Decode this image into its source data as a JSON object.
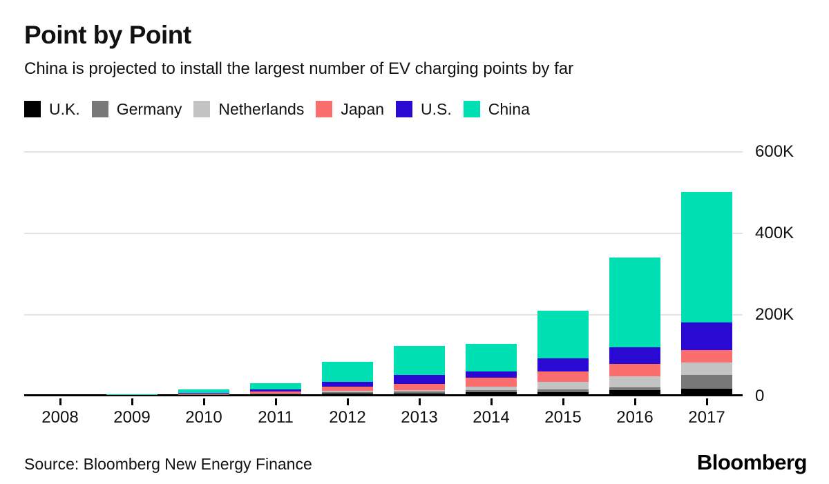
{
  "header": {
    "title": "Point by Point",
    "subtitle": "China is projected to install the largest number of EV charging points by far"
  },
  "legend": [
    {
      "label": "U.K.",
      "color": "#000000"
    },
    {
      "label": "Germany",
      "color": "#787878"
    },
    {
      "label": "Netherlands",
      "color": "#c3c3c3"
    },
    {
      "label": "Japan",
      "color": "#fb6e6e"
    },
    {
      "label": "U.S.",
      "color": "#2a0ad2"
    },
    {
      "label": "China",
      "color": "#00dfb1"
    }
  ],
  "chart_data": {
    "type": "bar",
    "stacked": true,
    "unit": "thousands of EV charging points",
    "categories": [
      "2008",
      "2009",
      "2010",
      "2011",
      "2012",
      "2013",
      "2014",
      "2015",
      "2016",
      "2017"
    ],
    "series": [
      {
        "name": "U.K.",
        "color": "#000000",
        "values": [
          0,
          0,
          0.1,
          0.5,
          2,
          2.5,
          4.5,
          5,
          10,
          13
        ]
      },
      {
        "name": "Germany",
        "color": "#787878",
        "values": [
          0,
          0,
          0.2,
          0.8,
          2.5,
          4,
          5.5,
          7,
          7,
          35
        ]
      },
      {
        "name": "Netherlands",
        "color": "#c3c3c3",
        "values": [
          0,
          0,
          0.3,
          1.2,
          4.5,
          4.5,
          8,
          18,
          27,
          30
        ]
      },
      {
        "name": "Japan",
        "color": "#fb6e6e",
        "values": [
          0,
          0.1,
          2,
          4.5,
          9,
          14,
          23,
          26,
          30,
          31
        ]
      },
      {
        "name": "U.S.",
        "color": "#2a0ad2",
        "values": [
          0,
          0.1,
          1,
          5.5,
          13,
          23,
          15,
          32,
          42,
          68
        ]
      },
      {
        "name": "China",
        "color": "#00dfb1",
        "values": [
          0,
          0.2,
          8,
          15,
          49,
          71,
          68,
          117,
          219,
          319
        ]
      }
    ],
    "y_axis": {
      "ticks": [
        {
          "label": "600K",
          "value": 600
        },
        {
          "label": "400K",
          "value": 400
        },
        {
          "label": "200K",
          "value": 200
        },
        {
          "label": "0",
          "value": 0
        }
      ],
      "ylim": [
        0,
        600
      ],
      "grid": true,
      "labels_position": "right"
    },
    "legend_position": "top"
  },
  "footer": {
    "source": "Source: Bloomberg New Energy Finance",
    "logo": "Bloomberg"
  }
}
